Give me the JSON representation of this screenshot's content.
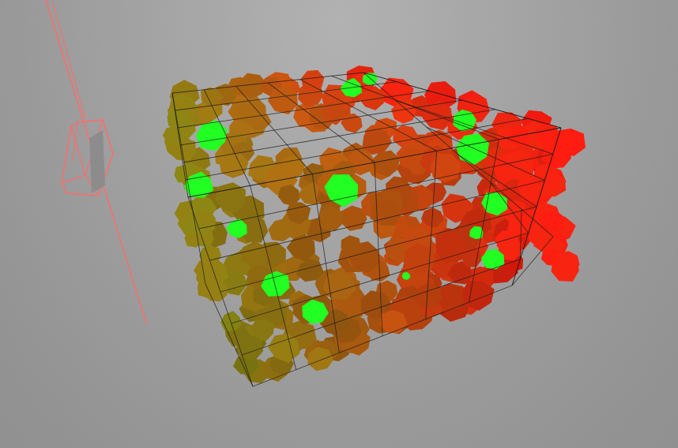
{
  "scene": {
    "ground_color": "#a2a2a2",
    "camera_frustum_color": "#ff6b6b",
    "camera_panel_color": "#8c8c8c",
    "grid_line_color": "#1a1a1a",
    "voxel_gradient": {
      "start_color": "#8a8a14",
      "mid_color": "#c05a10",
      "end_color": "#ff1c10"
    },
    "highlight_color": "#22ff22"
  }
}
